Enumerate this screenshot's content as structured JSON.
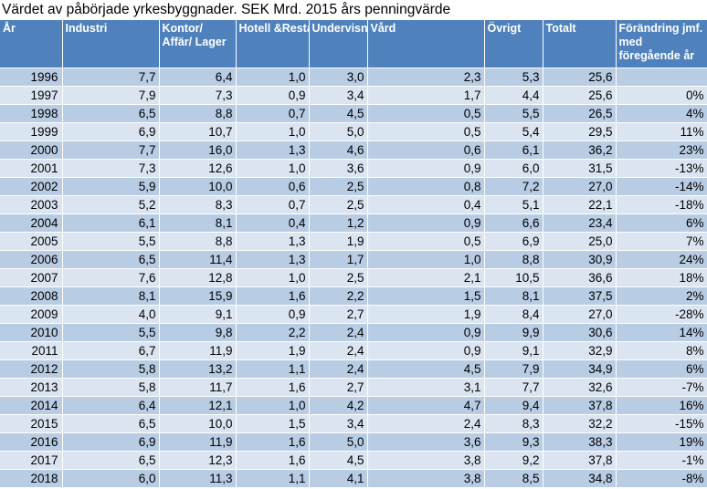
{
  "title": "Värdet av påbörjade yrkesbyggnader. SEK Mrd. 2015 års penningvärde",
  "headers": {
    "year": "År",
    "industri": "Industri",
    "kontor": "Kontor/ Affär/ Lager",
    "hotell": "Hotell &Resta",
    "undervisning": "Undervisning",
    "vard": "Vård",
    "ovrigt": "Övrigt",
    "totalt": "Totalt",
    "forandring": "Förändring jmf. med föregående år"
  },
  "rows": [
    {
      "year": "1996",
      "industri": "7,7",
      "kontor": "6,4",
      "hotell": "1,0",
      "undervisning": "3,0",
      "vard": "2,3",
      "ovrigt": "5,3",
      "totalt": "25,6",
      "forandring": ""
    },
    {
      "year": "1997",
      "industri": "7,9",
      "kontor": "7,3",
      "hotell": "0,9",
      "undervisning": "3,4",
      "vard": "1,7",
      "ovrigt": "4,4",
      "totalt": "25,6",
      "forandring": "0%"
    },
    {
      "year": "1998",
      "industri": "6,5",
      "kontor": "8,8",
      "hotell": "0,7",
      "undervisning": "4,5",
      "vard": "0,5",
      "ovrigt": "5,5",
      "totalt": "26,5",
      "forandring": "4%"
    },
    {
      "year": "1999",
      "industri": "6,9",
      "kontor": "10,7",
      "hotell": "1,0",
      "undervisning": "5,0",
      "vard": "0,5",
      "ovrigt": "5,4",
      "totalt": "29,5",
      "forandring": "11%"
    },
    {
      "year": "2000",
      "industri": "7,7",
      "kontor": "16,0",
      "hotell": "1,3",
      "undervisning": "4,6",
      "vard": "0,6",
      "ovrigt": "6,1",
      "totalt": "36,2",
      "forandring": "23%"
    },
    {
      "year": "2001",
      "industri": "7,3",
      "kontor": "12,6",
      "hotell": "1,0",
      "undervisning": "3,6",
      "vard": "0,9",
      "ovrigt": "6,0",
      "totalt": "31,5",
      "forandring": "-13%"
    },
    {
      "year": "2002",
      "industri": "5,9",
      "kontor": "10,0",
      "hotell": "0,6",
      "undervisning": "2,5",
      "vard": "0,8",
      "ovrigt": "7,2",
      "totalt": "27,0",
      "forandring": "-14%"
    },
    {
      "year": "2003",
      "industri": "5,2",
      "kontor": "8,3",
      "hotell": "0,7",
      "undervisning": "2,5",
      "vard": "0,4",
      "ovrigt": "5,1",
      "totalt": "22,1",
      "forandring": "-18%"
    },
    {
      "year": "2004",
      "industri": "6,1",
      "kontor": "8,1",
      "hotell": "0,4",
      "undervisning": "1,2",
      "vard": "0,9",
      "ovrigt": "6,6",
      "totalt": "23,4",
      "forandring": "6%"
    },
    {
      "year": "2005",
      "industri": "5,5",
      "kontor": "8,8",
      "hotell": "1,3",
      "undervisning": "1,9",
      "vard": "0,5",
      "ovrigt": "6,9",
      "totalt": "25,0",
      "forandring": "7%"
    },
    {
      "year": "2006",
      "industri": "6,5",
      "kontor": "11,4",
      "hotell": "1,3",
      "undervisning": "1,7",
      "vard": "1,0",
      "ovrigt": "8,8",
      "totalt": "30,9",
      "forandring": "24%"
    },
    {
      "year": "2007",
      "industri": "7,6",
      "kontor": "12,8",
      "hotell": "1,0",
      "undervisning": "2,5",
      "vard": "2,1",
      "ovrigt": "10,5",
      "totalt": "36,6",
      "forandring": "18%"
    },
    {
      "year": "2008",
      "industri": "8,1",
      "kontor": "15,9",
      "hotell": "1,6",
      "undervisning": "2,2",
      "vard": "1,5",
      "ovrigt": "8,1",
      "totalt": "37,5",
      "forandring": "2%"
    },
    {
      "year": "2009",
      "industri": "4,0",
      "kontor": "9,1",
      "hotell": "0,9",
      "undervisning": "2,7",
      "vard": "1,9",
      "ovrigt": "8,4",
      "totalt": "27,0",
      "forandring": "-28%"
    },
    {
      "year": "2010",
      "industri": "5,5",
      "kontor": "9,8",
      "hotell": "2,2",
      "undervisning": "2,4",
      "vard": "0,9",
      "ovrigt": "9,9",
      "totalt": "30,6",
      "forandring": "14%"
    },
    {
      "year": "2011",
      "industri": "6,7",
      "kontor": "11,9",
      "hotell": "1,9",
      "undervisning": "2,4",
      "vard": "0,9",
      "ovrigt": "9,1",
      "totalt": "32,9",
      "forandring": "8%"
    },
    {
      "year": "2012",
      "industri": "5,8",
      "kontor": "13,2",
      "hotell": "1,1",
      "undervisning": "2,4",
      "vard": "4,5",
      "ovrigt": "7,9",
      "totalt": "34,9",
      "forandring": "6%"
    },
    {
      "year": "2013",
      "industri": "5,8",
      "kontor": "11,7",
      "hotell": "1,6",
      "undervisning": "2,7",
      "vard": "3,1",
      "ovrigt": "7,7",
      "totalt": "32,6",
      "forandring": "-7%"
    },
    {
      "year": "2014",
      "industri": "6,4",
      "kontor": "12,1",
      "hotell": "1,0",
      "undervisning": "4,2",
      "vard": "4,7",
      "ovrigt": "9,4",
      "totalt": "37,8",
      "forandring": "16%"
    },
    {
      "year": "2015",
      "industri": "6,5",
      "kontor": "10,0",
      "hotell": "1,5",
      "undervisning": "3,4",
      "vard": "2,4",
      "ovrigt": "8,3",
      "totalt": "32,2",
      "forandring": "-15%"
    },
    {
      "year": "2016",
      "industri": "6,9",
      "kontor": "11,9",
      "hotell": "1,6",
      "undervisning": "5,0",
      "vard": "3,6",
      "ovrigt": "9,3",
      "totalt": "38,3",
      "forandring": "19%"
    },
    {
      "year": "2017",
      "industri": "6,5",
      "kontor": "12,3",
      "hotell": "1,6",
      "undervisning": "4,5",
      "vard": "3,8",
      "ovrigt": "9,2",
      "totalt": "37,8",
      "forandring": "-1%"
    },
    {
      "year": "2018",
      "industri": "6,0",
      "kontor": "11,3",
      "hotell": "1,1",
      "undervisning": "4,1",
      "vard": "3,8",
      "ovrigt": "8,5",
      "totalt": "34,8",
      "forandring": "-8%"
    }
  ],
  "colors": {
    "header": "#4f81bd",
    "row_dark": "#b8cce4",
    "row_light": "#dbe5f1"
  }
}
